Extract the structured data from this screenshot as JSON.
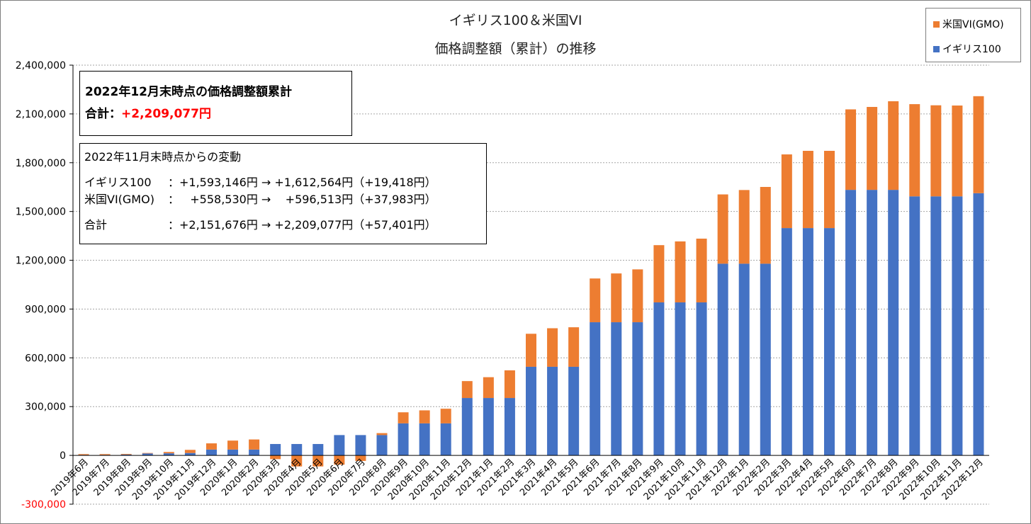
{
  "chart_data": {
    "type": "bar",
    "stacked": true,
    "title": [
      "イギリス100＆米国VI",
      "価格調整額（累計）の推移"
    ],
    "ylim": [
      -300000,
      2400000
    ],
    "yticks": [
      "2,400,000",
      "2,100,000",
      "1,800,000",
      "1,500,000",
      "1,200,000",
      "900,000",
      "600,000",
      "300,000",
      "0",
      "-300,000"
    ],
    "ytick_values": [
      2400000,
      2100000,
      1800000,
      1500000,
      1200000,
      900000,
      600000,
      300000,
      0,
      -300000
    ],
    "legend_position": "top-right",
    "categories": [
      "2019年6月",
      "2019年7月",
      "2019年8月",
      "2019年9月",
      "2019年10月",
      "2019年11月",
      "2019年12月",
      "2020年1月",
      "2020年2月",
      "2020年3月",
      "2020年4月",
      "2020年5月",
      "2020年6月",
      "2020年7月",
      "2020年8月",
      "2020年9月",
      "2020年10月",
      "2020年11月",
      "2020年12月",
      "2021年1月",
      "2021年2月",
      "2021年3月",
      "2021年4月",
      "2021年5月",
      "2021年6月",
      "2021年7月",
      "2021年8月",
      "2021年9月",
      "2021年10月",
      "2021年11月",
      "2021年12月",
      "2022年1月",
      "2022年2月",
      "2022年3月",
      "2022年4月",
      "2022年5月",
      "2022年6月",
      "2022年7月",
      "2022年8月",
      "2022年9月",
      "2022年10月",
      "2022年11月",
      "2022年12月"
    ],
    "series": [
      {
        "name": "イギリス100",
        "color": "#4472c4",
        "values": [
          3000,
          3000,
          5000,
          12000,
          13000,
          15000,
          36000,
          36000,
          36000,
          70000,
          70000,
          70000,
          125000,
          125000,
          125000,
          197000,
          197000,
          197000,
          353000,
          353000,
          353000,
          545000,
          545000,
          545000,
          819000,
          819000,
          819000,
          941000,
          941000,
          941000,
          1179000,
          1179000,
          1179000,
          1398000,
          1398000,
          1398000,
          1633000,
          1633000,
          1633000,
          1593146,
          1593146,
          1593146,
          1612564
        ]
      },
      {
        "name": "米国VI(GMO)",
        "color": "#ed7d31",
        "values": [
          5000,
          5000,
          4000,
          3000,
          8000,
          19000,
          38000,
          55000,
          62000,
          -23000,
          -68000,
          -68000,
          -57000,
          -34000,
          12000,
          68000,
          80000,
          90000,
          104000,
          128000,
          170000,
          203000,
          237000,
          243000,
          269000,
          300000,
          325000,
          352000,
          375000,
          392000,
          426000,
          453000,
          472000,
          453000,
          475000,
          475000,
          495000,
          510000,
          545000,
          567000,
          560000,
          558530,
          596513
        ]
      }
    ]
  },
  "legend": {
    "items": [
      "米国VI(GMO)",
      "イギリス100"
    ]
  },
  "summary": {
    "heading": "2022年12月末時点の価格調整額累計",
    "total_label": "合計：",
    "total_value": "+2,209,077円"
  },
  "change": {
    "heading": "2022年11月末時点からの変動",
    "rows": [
      {
        "label": "イギリス100",
        "text": "：+1,593,146円 → +1,612,564円（+19,418円）"
      },
      {
        "label": "米国VI(GMO)",
        "text": "：   +558,530円 →    +596,513円（+37,983円）"
      },
      {
        "label": "合計",
        "text": "：+2,151,676円 → +2,209,077円（+57,401円）"
      }
    ]
  }
}
